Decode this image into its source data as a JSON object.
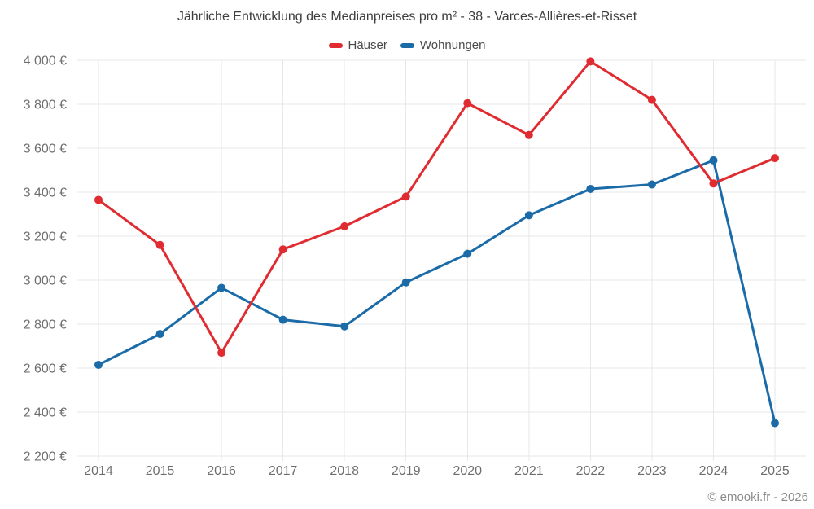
{
  "chart_data": {
    "type": "line",
    "title": "Jährliche Entwicklung des Medianpreises pro m² - 38 - Varces-Allières-et-Risset",
    "xlabel": "",
    "ylabel": "",
    "x": [
      "2014",
      "2015",
      "2016",
      "2017",
      "2018",
      "2019",
      "2020",
      "2021",
      "2022",
      "2023",
      "2024",
      "2025"
    ],
    "series": [
      {
        "id": "haeuser",
        "name": "Häuser",
        "color": "#e02b31",
        "values": [
          3365,
          3160,
          2670,
          3140,
          3245,
          3380,
          3805,
          3660,
          3995,
          3820,
          3440,
          3555
        ]
      },
      {
        "id": "wohnungen",
        "name": "Wohnungen",
        "color": "#1a6ba8",
        "values": [
          2615,
          2755,
          2965,
          2820,
          2790,
          2990,
          3120,
          3295,
          3415,
          3435,
          3545,
          2350
        ]
      }
    ],
    "ylim": [
      2200,
      4000
    ],
    "ytick_step": 200,
    "yticks": [
      {
        "value": 4000,
        "label": "4 000 €"
      },
      {
        "value": 3800,
        "label": "3 800 €"
      },
      {
        "value": 3600,
        "label": "3 600 €"
      },
      {
        "value": 3400,
        "label": "3 400 €"
      },
      {
        "value": 3200,
        "label": "3 200 €"
      },
      {
        "value": 3000,
        "label": "3 000 €"
      },
      {
        "value": 2800,
        "label": "2 800 €"
      },
      {
        "value": 2600,
        "label": "2 600 €"
      },
      {
        "value": 2400,
        "label": "2 400 €"
      },
      {
        "value": 2200,
        "label": "2 200 €"
      }
    ],
    "grid": true,
    "legend_position": "top",
    "gridline_color": "#e7e7e7"
  },
  "footer": {
    "attribution": "© emooki.fr - 2026"
  }
}
